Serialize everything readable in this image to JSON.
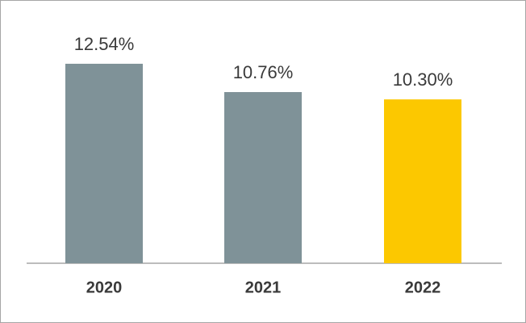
{
  "chart_data": {
    "type": "bar",
    "categories": [
      "2020",
      "2021",
      "2022"
    ],
    "values": [
      12.54,
      10.76,
      10.3
    ],
    "value_labels": [
      "12.54%",
      "10.76%",
      "10.30%"
    ],
    "colors": [
      "#7f9298",
      "#7f9298",
      "#fcc800"
    ]
  }
}
